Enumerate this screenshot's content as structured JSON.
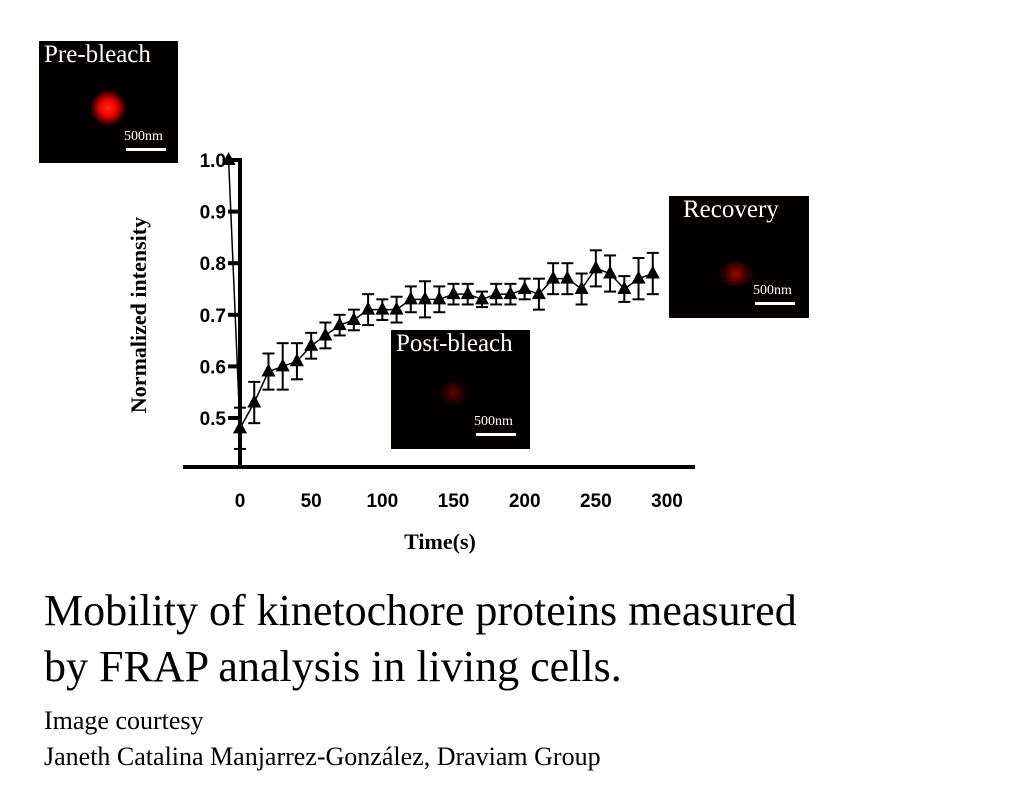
{
  "chart_data": {
    "type": "line",
    "xlabel": "Time(s)",
    "ylabel": "Normalized intensity",
    "xlim": [
      -40,
      320
    ],
    "ylim": [
      0.405,
      1.0
    ],
    "xticks": [
      0,
      50,
      100,
      150,
      200,
      250,
      300
    ],
    "yticks": [
      0.5,
      0.6,
      0.7,
      0.8,
      0.9,
      1.0
    ],
    "ytick_labels": [
      "0.5",
      "0.6",
      "0.7",
      "0.8",
      "0.9",
      "1.0"
    ],
    "x": [
      -8,
      0,
      10,
      20,
      30,
      40,
      50,
      60,
      70,
      80,
      90,
      100,
      110,
      120,
      130,
      140,
      150,
      160,
      170,
      180,
      190,
      200,
      210,
      220,
      230,
      240,
      250,
      260,
      270,
      280,
      290
    ],
    "y": [
      1.0,
      0.48,
      0.53,
      0.59,
      0.6,
      0.61,
      0.64,
      0.66,
      0.68,
      0.69,
      0.71,
      0.71,
      0.71,
      0.73,
      0.73,
      0.73,
      0.74,
      0.74,
      0.73,
      0.74,
      0.74,
      0.75,
      0.74,
      0.77,
      0.77,
      0.75,
      0.79,
      0.78,
      0.75,
      0.77,
      0.78
    ],
    "error": [
      0,
      0.04,
      0.04,
      0.035,
      0.045,
      0.035,
      0.025,
      0.025,
      0.02,
      0.02,
      0.03,
      0.02,
      0.025,
      0.025,
      0.035,
      0.025,
      0.02,
      0.02,
      0.015,
      0.02,
      0.02,
      0.02,
      0.03,
      0.03,
      0.03,
      0.03,
      0.035,
      0.035,
      0.025,
      0.04,
      0.04
    ],
    "marker": "triangle",
    "color": "#000000"
  },
  "insets": {
    "pre": {
      "label": "Pre-bleach",
      "scale": "500nm"
    },
    "post": {
      "label": "Post-bleach",
      "scale": "500nm"
    },
    "recovery": {
      "label": "Recovery",
      "scale": "500nm"
    }
  },
  "caption": {
    "line1": "Mobility of kinetochore proteins measured",
    "line2": "by FRAP analysis in living cells.",
    "credit1": "Image courtesy",
    "credit2": "Janeth Catalina Manjarrez-González, Draviam Group"
  }
}
